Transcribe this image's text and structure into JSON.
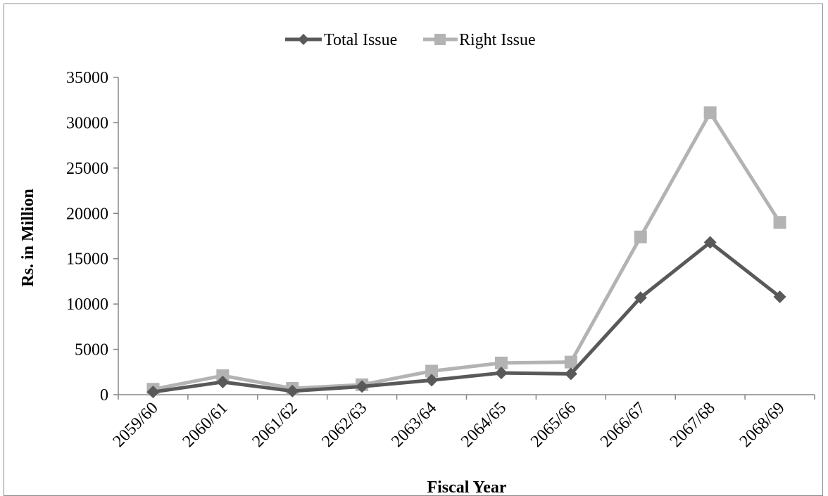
{
  "chart_data": {
    "type": "line",
    "title": "",
    "xlabel": "Fiscal Year",
    "ylabel": "Rs. in Million",
    "categories": [
      "2059/60",
      "2060/61",
      "2061/62",
      "2062/63",
      "2063/64",
      "2064/65",
      "2065/66",
      "2066/67",
      "2067/68",
      "2068/69"
    ],
    "ylim": [
      0,
      35000
    ],
    "yticks": [
      0,
      5000,
      10000,
      15000,
      20000,
      25000,
      30000,
      35000
    ],
    "grid": false,
    "legend_position": "top-center",
    "series": [
      {
        "name": "Total Issue",
        "color": "#595959",
        "marker": "diamond",
        "values": [
          300,
          1400,
          400,
          900,
          1600,
          2400,
          2300,
          10700,
          16800,
          10800
        ]
      },
      {
        "name": "Right Issue",
        "color": "#b3b3b3",
        "marker": "square",
        "values": [
          600,
          2100,
          700,
          1100,
          2600,
          3500,
          3600,
          17400,
          31100,
          19000
        ]
      }
    ]
  }
}
